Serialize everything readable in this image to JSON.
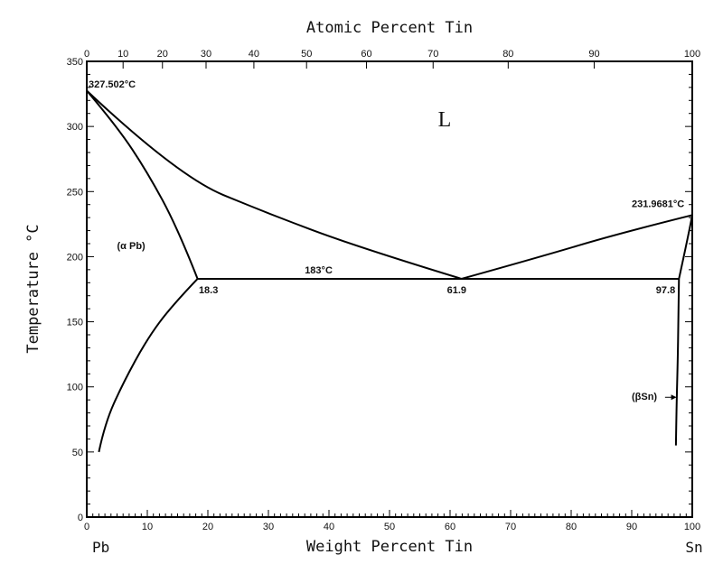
{
  "chart_data": {
    "type": "line",
    "title": "",
    "xlabel": "Weight Percent Tin",
    "x2label": "Atomic Percent Tin",
    "ylabel": "Temperature °C",
    "xlim": [
      0,
      100
    ],
    "ylim": [
      0,
      350
    ],
    "x_ticks": [
      "0",
      "10",
      "20",
      "30",
      "40",
      "50",
      "60",
      "70",
      "80",
      "90",
      "100"
    ],
    "y_ticks": [
      "0",
      "50",
      "100",
      "150",
      "200",
      "250",
      "300",
      "350"
    ],
    "top_ticks": [
      {
        "label": "0",
        "at_wt": 0
      },
      {
        "label": "10",
        "at_wt": 6
      },
      {
        "label": "20",
        "at_wt": 12.5
      },
      {
        "label": "30",
        "at_wt": 19.7
      },
      {
        "label": "40",
        "at_wt": 27.6
      },
      {
        "label": "50",
        "at_wt": 36.3
      },
      {
        "label": "60",
        "at_wt": 46.2
      },
      {
        "label": "70",
        "at_wt": 57.2
      },
      {
        "label": "80",
        "at_wt": 69.6
      },
      {
        "label": "90",
        "at_wt": 83.8
      },
      {
        "label": "100",
        "at_wt": 100
      }
    ],
    "grid": false,
    "end_labels": {
      "left": "Pb",
      "right": "Sn"
    },
    "series": [
      {
        "points": [
          [
            0,
            327.5
          ],
          [
            15,
            262
          ],
          [
            30,
            233
          ],
          [
            45,
            207
          ],
          [
            61.9,
            183
          ]
        ]
      },
      {
        "points": [
          [
            61.9,
            183
          ],
          [
            75,
            200
          ],
          [
            88,
            218
          ],
          [
            100,
            231.9
          ]
        ]
      },
      {
        "points": [
          [
            0,
            327.5
          ],
          [
            5,
            300
          ],
          [
            10,
            265
          ],
          [
            15,
            222
          ],
          [
            18.3,
            183
          ]
        ]
      },
      {
        "points": [
          [
            18.3,
            183
          ],
          [
            14,
            162
          ],
          [
            10,
            137
          ],
          [
            6,
            103
          ],
          [
            3,
            72
          ],
          [
            2,
            50
          ]
        ]
      },
      {
        "points": [
          [
            97.8,
            183
          ],
          [
            99.3,
            215
          ],
          [
            100,
            231.9
          ]
        ]
      },
      {
        "points": [
          [
            97.8,
            183
          ],
          [
            97.7,
            150
          ],
          [
            97.6,
            120
          ],
          [
            97.4,
            85
          ],
          [
            97.3,
            55
          ]
        ]
      },
      {
        "points": [
          [
            18.3,
            183
          ],
          [
            61.9,
            183
          ],
          [
            97.8,
            183
          ]
        ]
      }
    ],
    "annotations": [
      {
        "text": "327.502°C",
        "x": 0.3,
        "y": 330,
        "class": "annot"
      },
      {
        "text": "L",
        "x": 58,
        "y": 300,
        "class": "annot-big"
      },
      {
        "text": "231.9681°C",
        "x": 90,
        "y": 238,
        "class": "annot"
      },
      {
        "text": "(α Pb)",
        "x": 5,
        "y": 206,
        "class": "annot"
      },
      {
        "text": "183°C",
        "x": 36,
        "y": 187,
        "class": "annot"
      },
      {
        "text": "18.3",
        "x": 18.5,
        "y": 172,
        "class": "annot"
      },
      {
        "text": "61.9",
        "x": 59.5,
        "y": 172,
        "class": "annot"
      },
      {
        "text": "97.8",
        "x": 94,
        "y": 172,
        "class": "annot"
      },
      {
        "text": "(βSn)",
        "x": 90,
        "y": 90,
        "class": "annot"
      }
    ]
  }
}
